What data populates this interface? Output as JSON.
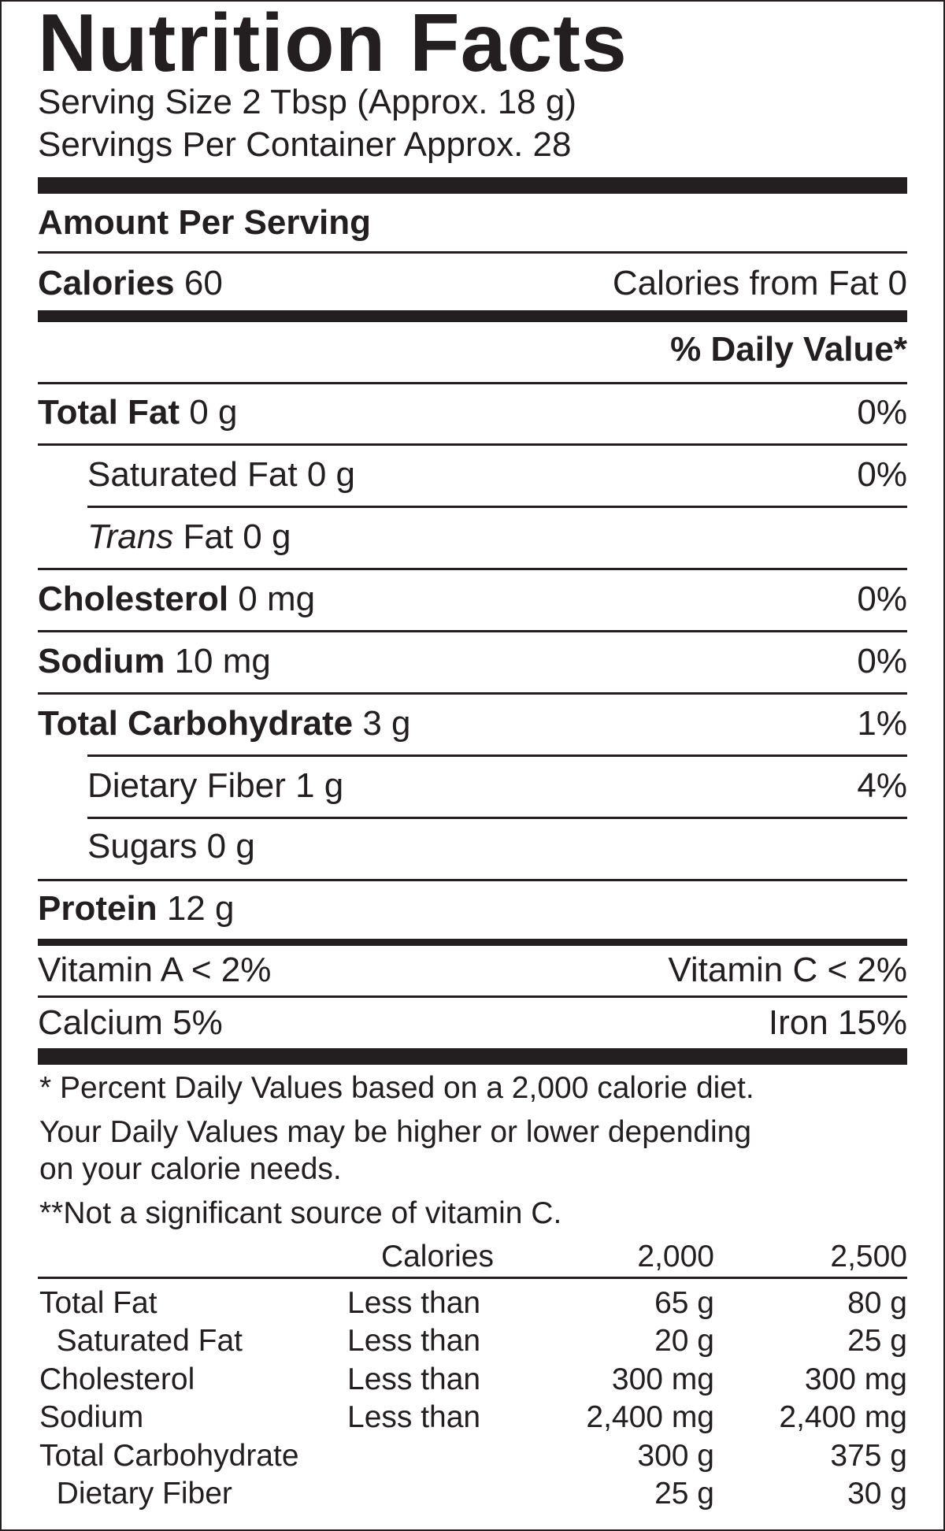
{
  "title": "Nutrition Facts",
  "serving_size": "Serving Size 2 Tbsp (Approx. 18 g)",
  "servings_per_container": "Servings Per Container Approx. 28",
  "amount_per_serving": "Amount Per Serving",
  "calories": {
    "label": "Calories",
    "value": "60",
    "from_fat": "Calories from Fat 0"
  },
  "daily_value_header": "% Daily Value*",
  "nutrients": [
    {
      "label": "Total Fat",
      "amount": "0 g",
      "dv": "0%"
    },
    {
      "label": "Saturated Fat 0 g",
      "dv": "0%"
    },
    {
      "label_italic": "Trans",
      "label": "Fat 0 g",
      "dv": ""
    },
    {
      "label": "Cholesterol",
      "amount": "0 mg",
      "dv": "0%"
    },
    {
      "label": "Sodium",
      "amount": "10 mg",
      "dv": "0%"
    },
    {
      "label": "Total Carbohydrate",
      "amount": "3 g",
      "dv": "1%"
    },
    {
      "label": "Dietary Fiber 1 g",
      "dv": "4%"
    },
    {
      "label": "Sugars 0 g",
      "dv": ""
    },
    {
      "label": "Protein",
      "amount": "12 g",
      "dv": ""
    }
  ],
  "vitamins": [
    {
      "left": "Vitamin A < 2%",
      "right": "Vitamin C < 2%"
    },
    {
      "left": "Calcium 5%",
      "right": "Iron 15%"
    }
  ],
  "footnotes": [
    "* Percent Daily Values based on a 2,000 calorie diet.",
    "Your Daily Values may be higher or lower depending",
    "on your calorie needs.",
    "**Not a significant source of vitamin C."
  ],
  "reference_table": {
    "header": {
      "calories": "Calories",
      "col1": "2,000",
      "col2": "2,500"
    },
    "rows": [
      {
        "name": "Total Fat",
        "qualifier": "Less than",
        "v1": "65 g",
        "v2": "80 g"
      },
      {
        "name": "  Saturated Fat",
        "qualifier": "Less than",
        "v1": "20 g",
        "v2": "25 g"
      },
      {
        "name": "Cholesterol",
        "qualifier": "Less than",
        "v1": "300 mg",
        "v2": "300 mg"
      },
      {
        "name": "Sodium",
        "qualifier": "Less than",
        "v1": "2,400 mg",
        "v2": "2,400 mg"
      },
      {
        "name": "Total Carbohydrate",
        "qualifier": "",
        "v1": "300 g",
        "v2": "375 g"
      },
      {
        "name": "  Dietary Fiber",
        "qualifier": "",
        "v1": "25 g",
        "v2": "30 g"
      }
    ]
  }
}
